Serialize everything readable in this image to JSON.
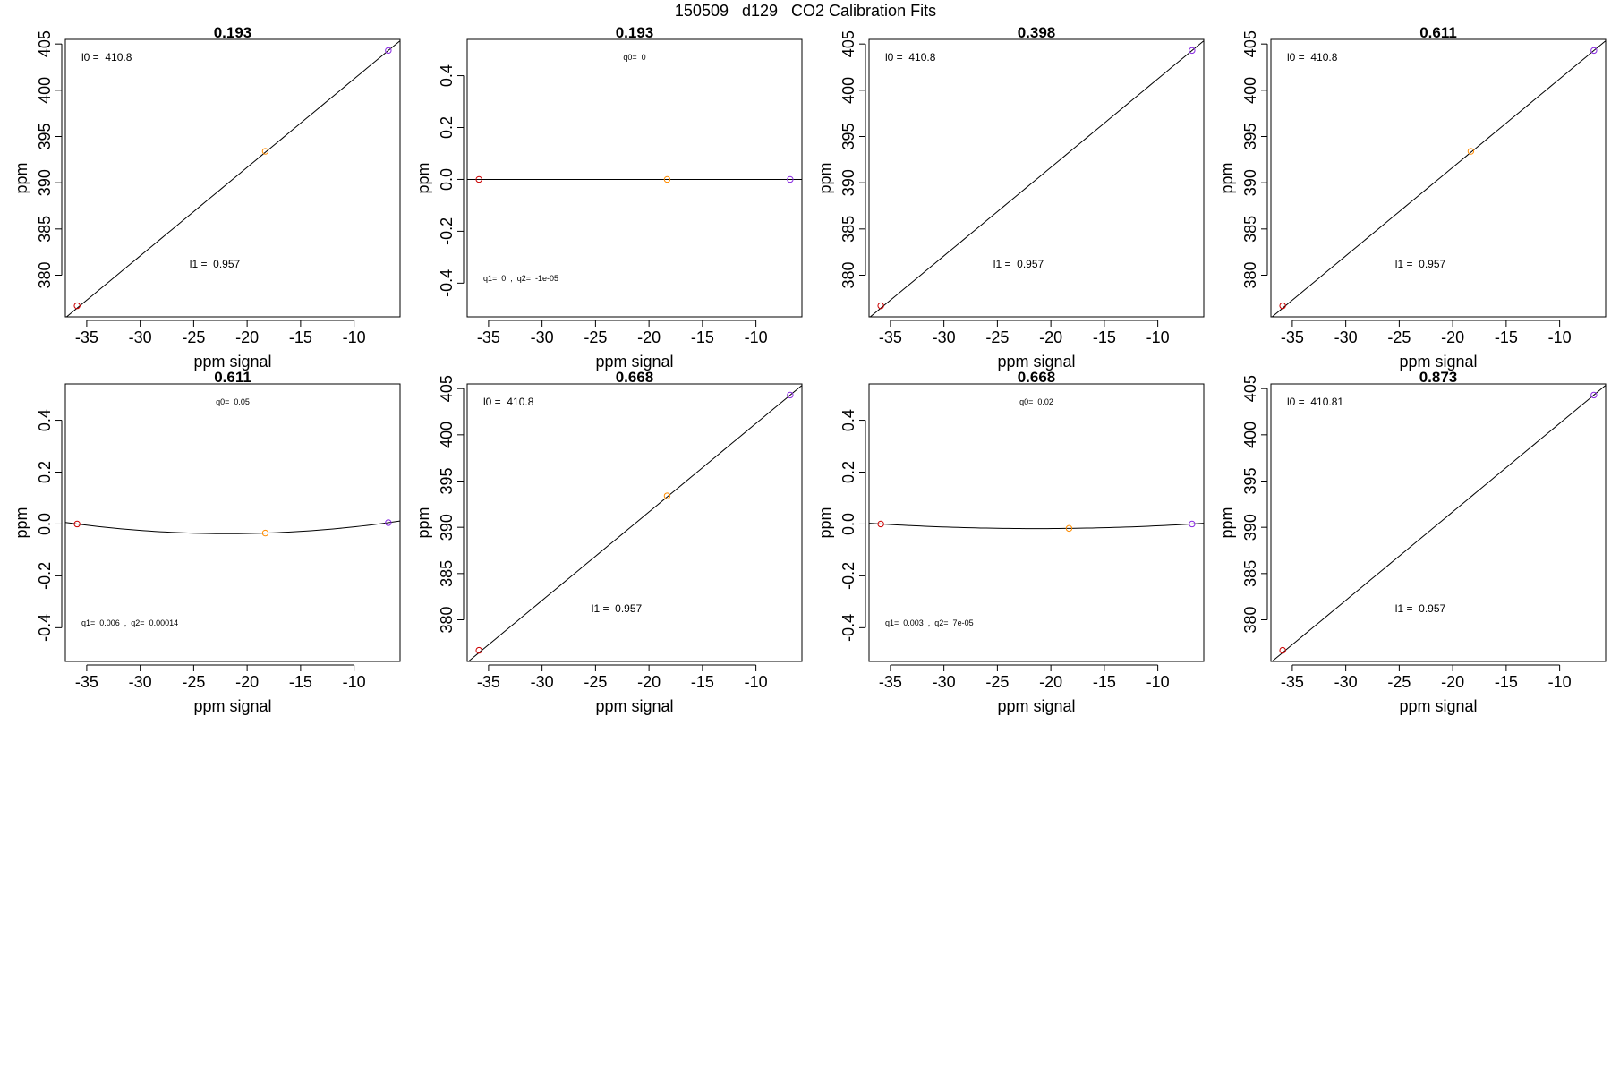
{
  "figure_title": "150509   d129   CO2 Calibration Fits",
  "colors": {
    "axis": "#000000",
    "fit_line": "#000000",
    "points": [
      "#cc0000",
      "#ff8c00",
      "#8a2be2"
    ]
  },
  "chart_data": [
    {
      "type": "scatter",
      "title": "0.193",
      "xlabel": "ppm signal",
      "ylabel": "ppm",
      "xlim": [
        -37,
        -5.7
      ],
      "ylim": [
        375.5,
        405.5
      ],
      "xticks": [
        -35,
        -30,
        -25,
        -20,
        -15,
        -10
      ],
      "yticks": [
        380,
        385,
        390,
        395,
        400,
        405
      ],
      "points": [
        {
          "x": -35.9,
          "y": 376.7
        },
        {
          "x": -18.3,
          "y": 393.4
        },
        {
          "x": -6.8,
          "y": 404.3
        }
      ],
      "fit": {
        "kind": "linear",
        "intercept": 410.8,
        "slope": 0.957
      },
      "annotations": [
        {
          "text": "l0 =  410.8",
          "pos": "top-left"
        },
        {
          "text": "l1 =  0.957",
          "pos": "bottom-center"
        }
      ]
    },
    {
      "type": "scatter",
      "title": "0.193",
      "xlabel": "ppm signal",
      "ylabel": "ppm",
      "xlim": [
        -37,
        -5.7
      ],
      "ylim": [
        -0.53,
        0.54
      ],
      "xticks": [
        -35,
        -30,
        -25,
        -20,
        -15,
        -10
      ],
      "yticks": [
        -0.4,
        -0.2,
        0.0,
        0.2,
        0.4
      ],
      "points": [
        {
          "x": -35.9,
          "y": 0.0
        },
        {
          "x": -18.3,
          "y": 0.0
        },
        {
          "x": -6.8,
          "y": 0.0
        }
      ],
      "fit": {
        "kind": "quadratic",
        "q0": 0,
        "q1": 0,
        "q2": -1e-05
      },
      "annotations": [
        {
          "text": "q0=  0",
          "pos": "top-center"
        },
        {
          "text": "q1=  0  ,  q2=  -1e-05",
          "pos": "bottom-left"
        }
      ]
    },
    {
      "type": "scatter",
      "title": "0.398",
      "xlabel": "ppm signal",
      "ylabel": "ppm",
      "xlim": [
        -37,
        -5.7
      ],
      "ylim": [
        375.5,
        405.5
      ],
      "xticks": [
        -35,
        -30,
        -25,
        -20,
        -15,
        -10
      ],
      "yticks": [
        380,
        385,
        390,
        395,
        400,
        405
      ],
      "points": [
        {
          "x": -35.9,
          "y": 376.7
        },
        {
          "x": -6.8,
          "y": 404.3
        }
      ],
      "fit": {
        "kind": "linear",
        "intercept": 410.8,
        "slope": 0.957
      },
      "annotations": [
        {
          "text": "l0 =  410.8",
          "pos": "top-left"
        },
        {
          "text": "l1 =  0.957",
          "pos": "bottom-center"
        }
      ]
    },
    {
      "type": "scatter",
      "title": "0.611",
      "xlabel": "ppm signal",
      "ylabel": "ppm",
      "xlim": [
        -37,
        -5.7
      ],
      "ylim": [
        375.5,
        405.5
      ],
      "xticks": [
        -35,
        -30,
        -25,
        -20,
        -15,
        -10
      ],
      "yticks": [
        380,
        385,
        390,
        395,
        400,
        405
      ],
      "points": [
        {
          "x": -35.9,
          "y": 376.7
        },
        {
          "x": -18.3,
          "y": 393.4
        },
        {
          "x": -6.8,
          "y": 404.3
        }
      ],
      "fit": {
        "kind": "linear",
        "intercept": 410.8,
        "slope": 0.957
      },
      "annotations": [
        {
          "text": "l0 =  410.8",
          "pos": "top-left"
        },
        {
          "text": "l1 =  0.957",
          "pos": "bottom-center"
        }
      ]
    },
    {
      "type": "scatter",
      "title": "0.611",
      "xlabel": "ppm signal",
      "ylabel": "ppm",
      "xlim": [
        -37,
        -5.7
      ],
      "ylim": [
        -0.53,
        0.54
      ],
      "xticks": [
        -35,
        -30,
        -25,
        -20,
        -15,
        -10
      ],
      "yticks": [
        -0.4,
        -0.2,
        0.0,
        0.2,
        0.4
      ],
      "points": [
        {
          "x": -35.9,
          "y": 0.0
        },
        {
          "x": -18.3,
          "y": -0.035
        },
        {
          "x": -6.8,
          "y": 0.005
        }
      ],
      "fit": {
        "kind": "quadratic",
        "q0": 0.05,
        "q1": 0.006,
        "q2": 0.00014
      },
      "annotations": [
        {
          "text": "q0=  0.05",
          "pos": "top-center"
        },
        {
          "text": "q1=  0.006  ,  q2=  0.00014",
          "pos": "bottom-left"
        }
      ]
    },
    {
      "type": "scatter",
      "title": "0.668",
      "xlabel": "ppm signal",
      "ylabel": "ppm",
      "xlim": [
        -37,
        -5.7
      ],
      "ylim": [
        375.5,
        405.5
      ],
      "xticks": [
        -35,
        -30,
        -25,
        -20,
        -15,
        -10
      ],
      "yticks": [
        380,
        385,
        390,
        395,
        400,
        405
      ],
      "points": [
        {
          "x": -35.9,
          "y": 376.7
        },
        {
          "x": -18.3,
          "y": 393.4
        },
        {
          "x": -6.8,
          "y": 404.3
        }
      ],
      "fit": {
        "kind": "linear",
        "intercept": 410.8,
        "slope": 0.957
      },
      "annotations": [
        {
          "text": "l0 =  410.8",
          "pos": "top-left"
        },
        {
          "text": "l1 =  0.957",
          "pos": "bottom-center"
        }
      ]
    },
    {
      "type": "scatter",
      "title": "0.668",
      "xlabel": "ppm signal",
      "ylabel": "ppm",
      "xlim": [
        -37,
        -5.7
      ],
      "ylim": [
        -0.53,
        0.54
      ],
      "xticks": [
        -35,
        -30,
        -25,
        -20,
        -15,
        -10
      ],
      "yticks": [
        -0.4,
        -0.2,
        0.0,
        0.2,
        0.4
      ],
      "points": [
        {
          "x": -35.9,
          "y": 0.0
        },
        {
          "x": -18.3,
          "y": -0.017
        },
        {
          "x": -6.8,
          "y": 0.0
        }
      ],
      "fit": {
        "kind": "quadratic",
        "q0": 0.02,
        "q1": 0.003,
        "q2": 7e-05
      },
      "annotations": [
        {
          "text": "q0=  0.02",
          "pos": "top-center"
        },
        {
          "text": "q1=  0.003  ,  q2=  7e-05",
          "pos": "bottom-left"
        }
      ]
    },
    {
      "type": "scatter",
      "title": "0.873",
      "xlabel": "ppm signal",
      "ylabel": "ppm",
      "xlim": [
        -37,
        -5.7
      ],
      "ylim": [
        375.5,
        405.5
      ],
      "xticks": [
        -35,
        -30,
        -25,
        -20,
        -15,
        -10
      ],
      "yticks": [
        380,
        385,
        390,
        395,
        400,
        405
      ],
      "points": [
        {
          "x": -35.9,
          "y": 376.7
        },
        {
          "x": -6.8,
          "y": 404.3
        }
      ],
      "fit": {
        "kind": "linear",
        "intercept": 410.81,
        "slope": 0.957
      },
      "annotations": [
        {
          "text": "l0 =  410.81",
          "pos": "top-left"
        },
        {
          "text": "l1 =  0.957",
          "pos": "bottom-center"
        }
      ]
    }
  ]
}
